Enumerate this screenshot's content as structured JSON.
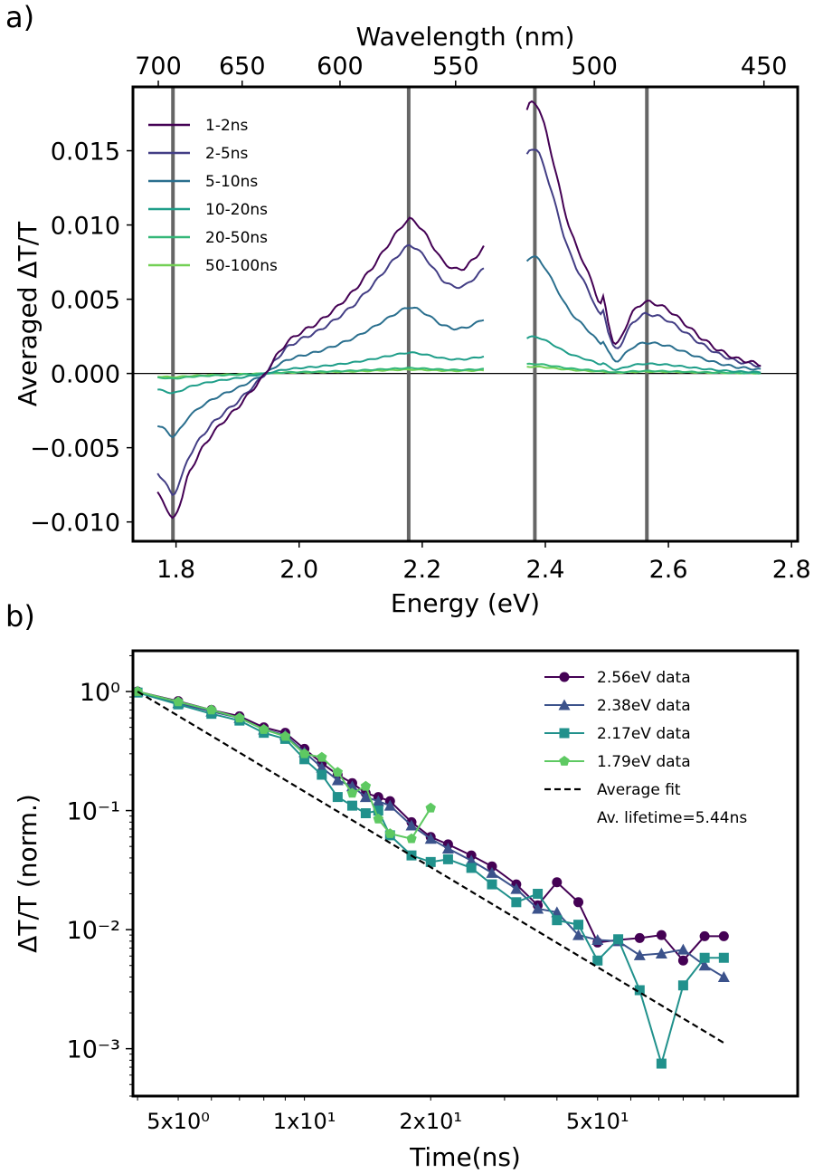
{
  "figure": {
    "panel_a_label": "a)",
    "panel_b_label": "b)"
  },
  "chart_data": [
    {
      "type": "line",
      "panel": "a)",
      "xlabel": "Energy (eV)",
      "ylabel": "Averaged ΔT/T",
      "top_xlabel": "Wavelength (nm)",
      "xlim": [
        1.73,
        2.81
      ],
      "ylim": [
        -0.0113,
        0.0193
      ],
      "x_ticks": [
        1.8,
        2.0,
        2.2,
        2.4,
        2.6,
        2.8
      ],
      "x_tick_labels": [
        "1.8",
        "2.0",
        "2.2",
        "2.4",
        "2.6",
        "2.8"
      ],
      "y_ticks": [
        0.015,
        0.01,
        0.005,
        0.0,
        -0.005,
        -0.01
      ],
      "y_tick_labels": [
        "0.015",
        "0.010",
        "0.005",
        "0.000",
        "−0.005",
        "−0.010"
      ],
      "top_ticks_nm": [
        700,
        650,
        600,
        550,
        500,
        450
      ],
      "top_tick_labels": [
        "700",
        "650",
        "600",
        "550",
        "500",
        "450"
      ],
      "vertical_lines_eV": [
        1.795,
        2.178,
        2.383,
        2.565
      ],
      "zero_line": true,
      "legend": "upper left",
      "grid": false,
      "series": [
        {
          "name": "1-2ns",
          "color": "#440154",
          "scale": 1.0
        },
        {
          "name": "2-5ns",
          "color": "#433e85",
          "scale": 0.83
        },
        {
          "name": "5-10ns",
          "color": "#2a6f8e",
          "scale": 0.43
        },
        {
          "name": "10-20ns",
          "color": "#1f9e89",
          "scale": 0.135
        },
        {
          "name": "20-50ns",
          "color": "#35b779",
          "scale": 0.035
        },
        {
          "name": "50-100ns",
          "color": "#73d055",
          "scale": 0.025
        }
      ],
      "base_profile_1_2ns": {
        "segment_1": {
          "x": [
            1.77,
            1.78,
            1.785,
            1.79,
            1.795,
            1.8,
            1.81,
            1.82,
            1.84,
            1.86,
            1.88,
            1.9,
            1.92,
            1.94,
            1.95,
            1.96,
            1.98,
            2.0,
            2.03,
            2.06,
            2.09,
            2.12,
            2.15,
            2.17,
            2.18,
            2.19,
            2.21,
            2.23,
            2.25,
            2.27,
            2.29,
            2.3
          ],
          "y": [
            -0.0081,
            -0.0086,
            -0.0091,
            -0.0096,
            -0.0099,
            -0.0095,
            -0.0083,
            -0.0068,
            -0.0052,
            -0.004,
            -0.0031,
            -0.0023,
            -0.0013,
            -0.0003,
            0.0003,
            0.001,
            0.0021,
            0.0027,
            0.0034,
            0.0044,
            0.0056,
            0.0072,
            0.009,
            0.0101,
            0.0104,
            0.0102,
            0.0091,
            0.0077,
            0.007,
            0.0071,
            0.008,
            0.0085
          ]
        },
        "segment_2": {
          "x": [
            2.37,
            2.375,
            2.38,
            2.385,
            2.39,
            2.4,
            2.41,
            2.42,
            2.43,
            2.44,
            2.45,
            2.46,
            2.47,
            2.48,
            2.485,
            2.49,
            2.495,
            2.5,
            2.51,
            2.515,
            2.52,
            2.53,
            2.54,
            2.55,
            2.56,
            2.57,
            2.58,
            2.6,
            2.62,
            2.65,
            2.68,
            2.71,
            2.75
          ],
          "y": [
            0.0177,
            0.0182,
            0.0183,
            0.0182,
            0.0178,
            0.0165,
            0.0148,
            0.013,
            0.0112,
            0.0097,
            0.0086,
            0.0077,
            0.0067,
            0.0057,
            0.005,
            0.0047,
            0.0052,
            0.0038,
            0.0022,
            0.0019,
            0.0021,
            0.0031,
            0.004,
            0.0045,
            0.0048,
            0.0048,
            0.0047,
            0.0043,
            0.0036,
            0.0025,
            0.0016,
            0.001,
            0.0006
          ]
        }
      }
    },
    {
      "type": "line",
      "panel": "b)",
      "xlabel": "Time(ns)",
      "ylabel": "ΔT/T (norm.)",
      "x_scale": "log",
      "y_scale": "log",
      "xlim": [
        3.9,
        150
      ],
      "ylim": [
        0.0004,
        2.2
      ],
      "x_tick_labels": [
        {
          "value": 5,
          "label": "5x10⁰"
        },
        {
          "value": 10,
          "label": "1x10¹"
        },
        {
          "value": 20,
          "label": "2x10¹"
        },
        {
          "value": 50,
          "label": "5x10¹"
        }
      ],
      "y_tick_labels": [
        {
          "value": 1,
          "label": "10⁰"
        },
        {
          "value": 0.1,
          "label": "10⁻¹"
        },
        {
          "value": 0.01,
          "label": "10⁻²"
        },
        {
          "value": 0.001,
          "label": "10⁻³"
        }
      ],
      "legend": "upper right",
      "legend_note": "Av. lifetime=5.44ns",
      "grid": false,
      "series": [
        {
          "name": "2.56eV data",
          "color": "#440154",
          "marker": "circle",
          "x": [
            4,
            5,
            6,
            7,
            8,
            9,
            10,
            11,
            12,
            13,
            14,
            15,
            16,
            18,
            20,
            22,
            25,
            28,
            32,
            36,
            40,
            45,
            50,
            56,
            63,
            71,
            80,
            90,
            100
          ],
          "y": [
            1.0,
            0.83,
            0.7,
            0.62,
            0.5,
            0.45,
            0.33,
            0.25,
            0.2,
            0.17,
            0.14,
            0.13,
            0.12,
            0.08,
            0.06,
            0.052,
            0.042,
            0.034,
            0.024,
            0.016,
            0.025,
            0.017,
            0.0078,
            0.0082,
            0.0085,
            0.009,
            0.0055,
            0.0088,
            0.0088
          ]
        },
        {
          "name": "2.38eV data",
          "color": "#3b528b",
          "marker": "triangle",
          "x": [
            4,
            5,
            6,
            7,
            8,
            9,
            10,
            11,
            12,
            13,
            14,
            15,
            16,
            18,
            20,
            22,
            25,
            28,
            32,
            36,
            40,
            45,
            50,
            56,
            63,
            71,
            80,
            90,
            100
          ],
          "y": [
            1.0,
            0.8,
            0.68,
            0.6,
            0.48,
            0.43,
            0.31,
            0.23,
            0.18,
            0.16,
            0.13,
            0.12,
            0.11,
            0.075,
            0.058,
            0.048,
            0.038,
            0.03,
            0.022,
            0.015,
            0.014,
            0.009,
            0.0082,
            0.008,
            0.0061,
            0.0063,
            0.0068,
            0.005,
            0.004
          ]
        },
        {
          "name": "2.17eV data",
          "color": "#21918c",
          "marker": "square",
          "x": [
            4,
            5,
            6,
            7,
            8,
            9,
            10,
            11,
            12,
            13,
            14,
            15,
            16,
            18,
            20,
            22,
            25,
            28,
            32,
            36,
            40,
            45,
            50,
            56,
            63,
            71,
            80,
            90,
            100
          ],
          "y": [
            0.98,
            0.78,
            0.65,
            0.57,
            0.45,
            0.4,
            0.27,
            0.2,
            0.13,
            0.11,
            0.095,
            0.1,
            0.062,
            0.042,
            0.037,
            0.039,
            0.033,
            0.024,
            0.017,
            0.02,
            0.012,
            0.011,
            0.0055,
            0.0083,
            0.0031,
            0.00075,
            0.0034,
            0.0058,
            0.0058
          ]
        },
        {
          "name": "1.79eV data",
          "color": "#5ec962",
          "marker": "pentagon",
          "x": [
            4,
            5,
            6,
            7,
            8,
            9,
            10,
            11,
            12,
            13,
            14,
            15,
            16,
            18,
            20
          ],
          "y": [
            1.0,
            0.82,
            0.7,
            0.6,
            0.48,
            0.42,
            0.3,
            0.28,
            0.21,
            0.14,
            0.16,
            0.085,
            0.064,
            0.058,
            0.105
          ]
        },
        {
          "name": "Average fit",
          "color": "#000000",
          "style": "dashed",
          "x": [
            4,
            100
          ],
          "y": [
            1.0,
            0.00112
          ]
        }
      ]
    }
  ]
}
